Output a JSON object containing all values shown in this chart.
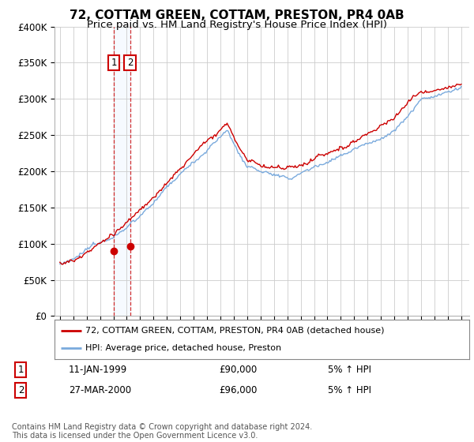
{
  "title": "72, COTTAM GREEN, COTTAM, PRESTON, PR4 0AB",
  "subtitle": "Price paid vs. HM Land Registry's House Price Index (HPI)",
  "ylim": [
    0,
    400000
  ],
  "yticks": [
    0,
    50000,
    100000,
    150000,
    200000,
    250000,
    300000,
    350000,
    400000
  ],
  "hpi_color": "#7aaadd",
  "price_color": "#cc0000",
  "dashed_color": "#cc0000",
  "purchase1": {
    "date_num": 1999.03,
    "price": 90000,
    "label": "1",
    "display_date": "11-JAN-1999",
    "hpi_pct": "5% ↑ HPI"
  },
  "purchase2": {
    "date_num": 2000.24,
    "price": 96000,
    "label": "2",
    "display_date": "27-MAR-2000",
    "hpi_pct": "5% ↑ HPI"
  },
  "legend_label_red": "72, COTTAM GREEN, COTTAM, PRESTON, PR4 0AB (detached house)",
  "legend_label_blue": "HPI: Average price, detached house, Preston",
  "copyright": "Contains HM Land Registry data © Crown copyright and database right 2024.\nThis data is licensed under the Open Government Licence v3.0.",
  "background_color": "#ffffff",
  "grid_color": "#cccccc",
  "annotation_color": "#cc0000",
  "span_color": "#ddeeff"
}
